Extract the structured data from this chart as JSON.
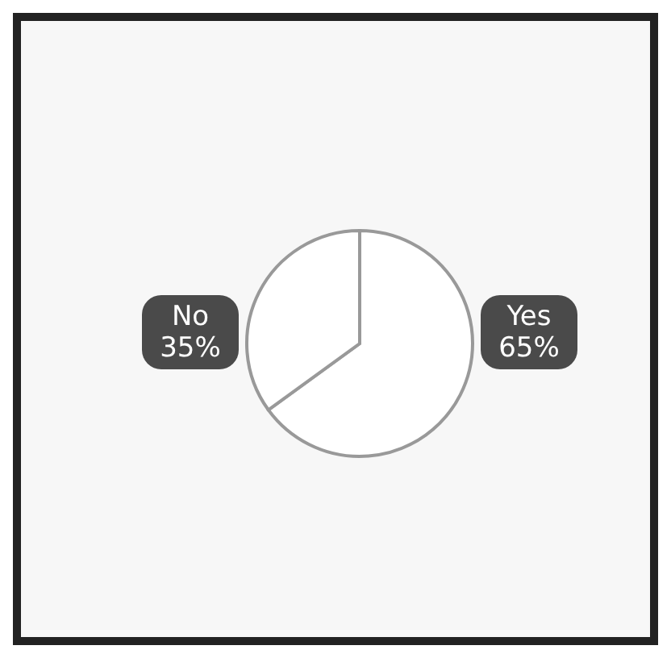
{
  "chart_data": {
    "type": "pie",
    "categories": [
      "Yes",
      "No"
    ],
    "values": [
      65,
      35
    ],
    "colors": [
      "#ffffff",
      "#ffffff"
    ],
    "value_labels": [
      "65%",
      "35%"
    ]
  }
}
